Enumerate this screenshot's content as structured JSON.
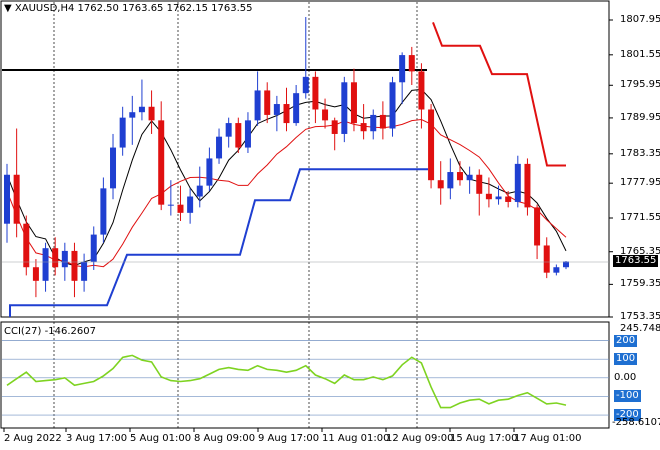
{
  "header": {
    "symbol_caption": "XAUUSD,H4",
    "ohlc": "1762.50 1763.65 1762.15 1763.55"
  },
  "indicator": {
    "caption": "CCI(27) -146.2607",
    "top_value": "245.748",
    "bottom_value": "-258.6107",
    "level_tags": [
      "200",
      "100",
      "0.00",
      "-100",
      "-200"
    ]
  },
  "price_axis": {
    "ticks": [
      "1807.95",
      "1801.55",
      "1795.95",
      "1789.95",
      "1783.35",
      "1777.95",
      "1771.55",
      "1765.35",
      "1759.35",
      "1753.35"
    ],
    "current_price": "1763.55"
  },
  "time_axis": {
    "ticks": [
      "2 Aug 2022",
      "3 Aug 17:00",
      "5 Aug 01:00",
      "8 Aug 09:00",
      "9 Aug 17:00",
      "11 Aug 01:00",
      "12 Aug 09:00",
      "15 Aug 17:00",
      "17 Aug 01:00"
    ]
  },
  "colors": {
    "bull": "#1f3fd1",
    "bear": "#e01010",
    "ma_fast": "#000000",
    "ma_slow": "#e01010",
    "support": "#1f3fd1",
    "resistance": "#e01010",
    "cci": "#7ed321",
    "level_line": "#6f8fc0",
    "tag": "#1e6fd1"
  },
  "chart_data": {
    "type": "candlestick",
    "y_range": [
      1753.35,
      1809.5
    ],
    "candles": [
      [
        1770.5,
        1781.5,
        1767.0,
        1779.5
      ],
      [
        1779.5,
        1788.0,
        1768.0,
        1770.5
      ],
      [
        1770.5,
        1772.0,
        1761.0,
        1762.5
      ],
      [
        1762.5,
        1764.0,
        1757.0,
        1760.0
      ],
      [
        1760.0,
        1767.0,
        1758.0,
        1766.0
      ],
      [
        1766.0,
        1768.0,
        1761.0,
        1762.5
      ],
      [
        1762.5,
        1767.0,
        1760.0,
        1765.5
      ],
      [
        1765.5,
        1767.0,
        1757.0,
        1760.0
      ],
      [
        1760.0,
        1765.0,
        1758.0,
        1763.5
      ],
      [
        1763.5,
        1770.0,
        1762.0,
        1768.5
      ],
      [
        1768.5,
        1779.0,
        1767.0,
        1777.0
      ],
      [
        1777.0,
        1787.0,
        1775.0,
        1784.5
      ],
      [
        1784.5,
        1792.0,
        1783.0,
        1790.0
      ],
      [
        1790.0,
        1794.0,
        1785.0,
        1791.0
      ],
      [
        1791.0,
        1797.0,
        1789.5,
        1792.0
      ],
      [
        1792.0,
        1795.0,
        1787.0,
        1789.5
      ],
      [
        1789.5,
        1793.0,
        1773.0,
        1774.0
      ],
      [
        1774.0,
        1778.5,
        1772.0,
        1774.0
      ],
      [
        1774.0,
        1777.5,
        1771.0,
        1772.5
      ],
      [
        1772.5,
        1777.0,
        1770.5,
        1775.5
      ],
      [
        1775.5,
        1781.0,
        1773.5,
        1777.5
      ],
      [
        1777.5,
        1784.5,
        1776.5,
        1782.5
      ],
      [
        1782.5,
        1788.0,
        1781.5,
        1786.5
      ],
      [
        1786.5,
        1790.0,
        1784.5,
        1789.0
      ],
      [
        1789.0,
        1790.0,
        1783.5,
        1784.5
      ],
      [
        1784.5,
        1791.0,
        1783.5,
        1789.5
      ],
      [
        1789.5,
        1798.5,
        1788.5,
        1795.0
      ],
      [
        1795.0,
        1796.5,
        1789.0,
        1790.5
      ],
      [
        1790.5,
        1794.0,
        1787.5,
        1792.5
      ],
      [
        1792.5,
        1795.5,
        1787.5,
        1789.0
      ],
      [
        1789.0,
        1796.0,
        1788.5,
        1794.5
      ],
      [
        1794.5,
        1808.5,
        1793.5,
        1797.5
      ],
      [
        1797.5,
        1798.5,
        1789.0,
        1791.5
      ],
      [
        1791.5,
        1793.5,
        1788.0,
        1789.5
      ],
      [
        1789.5,
        1790.0,
        1784.0,
        1787.0
      ],
      [
        1787.0,
        1797.5,
        1785.5,
        1796.5
      ],
      [
        1796.5,
        1799.0,
        1787.5,
        1789.0
      ],
      [
        1789.0,
        1792.5,
        1786.0,
        1787.5
      ],
      [
        1787.5,
        1791.5,
        1786.0,
        1790.5
      ],
      [
        1790.5,
        1793.0,
        1786.0,
        1788.0
      ],
      [
        1788.0,
        1797.5,
        1786.5,
        1796.5
      ],
      [
        1796.5,
        1802.0,
        1792.5,
        1801.5
      ],
      [
        1801.5,
        1803.0,
        1796.0,
        1798.5
      ],
      [
        1798.5,
        1800.0,
        1788.0,
        1791.5
      ],
      [
        1791.5,
        1792.5,
        1777.0,
        1778.5
      ],
      [
        1778.5,
        1782.0,
        1774.0,
        1777.0
      ],
      [
        1777.0,
        1782.5,
        1775.0,
        1780.0
      ],
      [
        1780.0,
        1782.0,
        1777.5,
        1778.5
      ],
      [
        1778.5,
        1781.0,
        1776.0,
        1779.5
      ],
      [
        1779.5,
        1780.5,
        1772.0,
        1776.0
      ],
      [
        1776.0,
        1779.0,
        1773.5,
        1775.0
      ],
      [
        1775.0,
        1777.5,
        1774.0,
        1775.5
      ],
      [
        1775.5,
        1776.5,
        1773.5,
        1774.5
      ],
      [
        1774.5,
        1783.0,
        1773.5,
        1781.5
      ],
      [
        1781.5,
        1782.5,
        1772.0,
        1773.5
      ],
      [
        1773.5,
        1774.0,
        1764.0,
        1766.5
      ],
      [
        1766.5,
        1768.0,
        1760.5,
        1761.5
      ],
      [
        1761.5,
        1763.0,
        1761.0,
        1762.5
      ],
      [
        1762.5,
        1763.65,
        1762.15,
        1763.55
      ]
    ],
    "cci_range": [
      -258.6107,
      245.748
    ],
    "cci_levels": [
      200,
      100,
      0,
      -100,
      -200
    ],
    "cci_values": [
      -40,
      -5,
      30,
      -20,
      -15,
      -10,
      0,
      -40,
      -30,
      -20,
      10,
      50,
      110,
      120,
      95,
      85,
      5,
      -15,
      -20,
      -15,
      -5,
      20,
      45,
      55,
      45,
      40,
      65,
      45,
      40,
      30,
      40,
      65,
      15,
      -5,
      -30,
      15,
      -10,
      -10,
      5,
      -10,
      10,
      70,
      110,
      80,
      -50,
      -160,
      -160,
      -135,
      -120,
      -115,
      -140,
      -120,
      -115,
      -95,
      -80,
      -110,
      -140,
      -135,
      -146.2607
    ]
  }
}
